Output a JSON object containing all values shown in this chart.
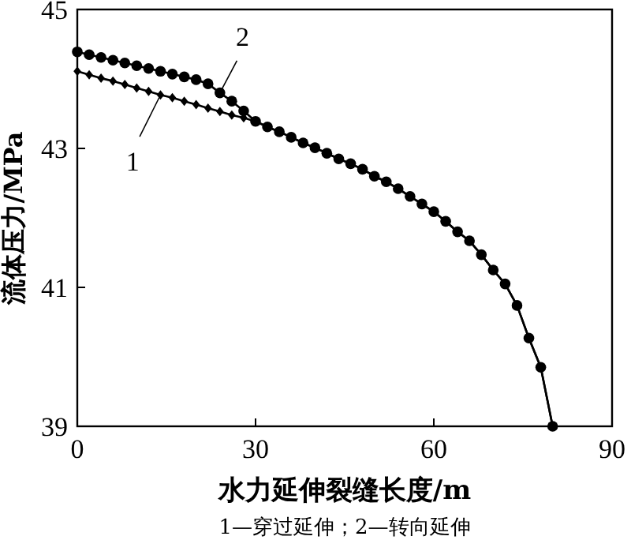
{
  "chart_data": {
    "type": "line",
    "xlabel": "水力延伸裂缝长度/m",
    "ylabel": "流体压力/MPa",
    "xlim": [
      0,
      90
    ],
    "xticks": [
      0,
      30,
      60,
      90
    ],
    "ylim": [
      39,
      45
    ],
    "yticks": [
      39,
      41,
      43,
      45
    ],
    "grid": false,
    "line_style": "solid",
    "series": [
      {
        "color": "#000000",
        "marker": "diamond",
        "x": [
          0,
          2,
          4,
          6,
          8,
          10,
          12,
          14,
          16,
          18,
          20,
          22,
          24,
          26,
          28,
          30,
          32,
          34,
          36,
          38,
          40,
          42,
          44,
          46,
          48,
          50,
          52,
          54,
          56,
          58,
          60,
          62,
          64,
          66,
          68,
          70,
          72,
          74,
          76,
          78,
          80
        ],
        "values": [
          44.11,
          44.06,
          44.01,
          43.97,
          43.92,
          43.87,
          43.82,
          43.77,
          43.73,
          43.68,
          43.63,
          43.58,
          43.53,
          43.48,
          43.44,
          43.39,
          43.31,
          43.24,
          43.16,
          43.08,
          43.01,
          42.93,
          42.85,
          42.78,
          42.7,
          42.6,
          42.52,
          42.42,
          42.31,
          42.2,
          42.09,
          41.95,
          41.8,
          41.67,
          41.47,
          41.25,
          41.05,
          40.74,
          40.27,
          39.85,
          39.0
        ]
      },
      {
        "color": "#000000",
        "marker": "circle",
        "x": [
          0,
          2,
          4,
          6,
          8,
          10,
          12,
          14,
          16,
          18,
          20,
          22,
          24,
          26,
          28,
          30,
          32,
          34,
          36,
          38,
          40,
          42,
          44,
          46,
          48,
          50,
          52,
          54,
          56,
          58,
          60,
          62,
          64,
          66,
          68,
          70,
          72,
          74,
          76,
          78,
          80
        ],
        "values": [
          44.39,
          44.35,
          44.31,
          44.27,
          44.23,
          44.19,
          44.15,
          44.11,
          44.07,
          44.03,
          43.99,
          43.93,
          43.8,
          43.68,
          43.54,
          43.39,
          43.31,
          43.24,
          43.16,
          43.08,
          43.01,
          42.93,
          42.85,
          42.78,
          42.7,
          42.6,
          42.52,
          42.42,
          42.31,
          42.2,
          42.09,
          41.95,
          41.8,
          41.67,
          41.47,
          41.25,
          41.05,
          40.74,
          40.27,
          39.85,
          39.0
        ]
      }
    ],
    "annotations": [
      {
        "text": "1",
        "x": 14,
        "y": 43.77
      },
      {
        "text": "2",
        "x": 24,
        "y": 43.8
      },
      "1—穿过延伸；2—转向延伸"
    ]
  }
}
